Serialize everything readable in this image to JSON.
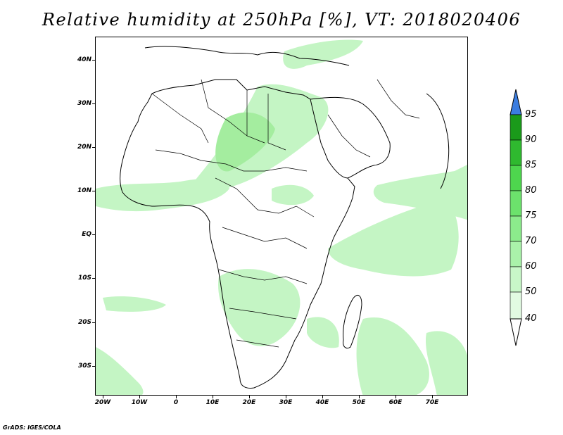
{
  "title": "Relative humidity at 250hPa [%], VT: 2018020406",
  "footer": "GrADS: IGES/COLA",
  "map": {
    "lon_range": [
      -22,
      80
    ],
    "lat_range": [
      -37,
      45
    ],
    "lat_labels": [
      "40N",
      "30N",
      "20N",
      "10N",
      "EQ",
      "10S",
      "20S",
      "30S"
    ],
    "lat_values": [
      40,
      30,
      20,
      10,
      0,
      -10,
      -20,
      -30
    ],
    "lon_labels": [
      "20W",
      "10W",
      "0",
      "10E",
      "20E",
      "30E",
      "40E",
      "50E",
      "60E",
      "70E"
    ],
    "lon_values": [
      -20,
      -10,
      0,
      10,
      20,
      30,
      40,
      50,
      60,
      70
    ]
  },
  "colorbar": {
    "levels": [
      "95",
      "90",
      "85",
      "80",
      "75",
      "70",
      "60",
      "50",
      "40"
    ],
    "colors": [
      "#1a9a1a",
      "#2fb92f",
      "#4ed64e",
      "#6ce26c",
      "#8ceb8c",
      "#aaf2aa",
      "#c8f7c8",
      "#e2fbe2"
    ],
    "over_color": "#3b7de0",
    "under_color": "#ffffff"
  },
  "fill_colors": {
    "light": "#c4f5c4",
    "medium": "#a4ed9f"
  }
}
